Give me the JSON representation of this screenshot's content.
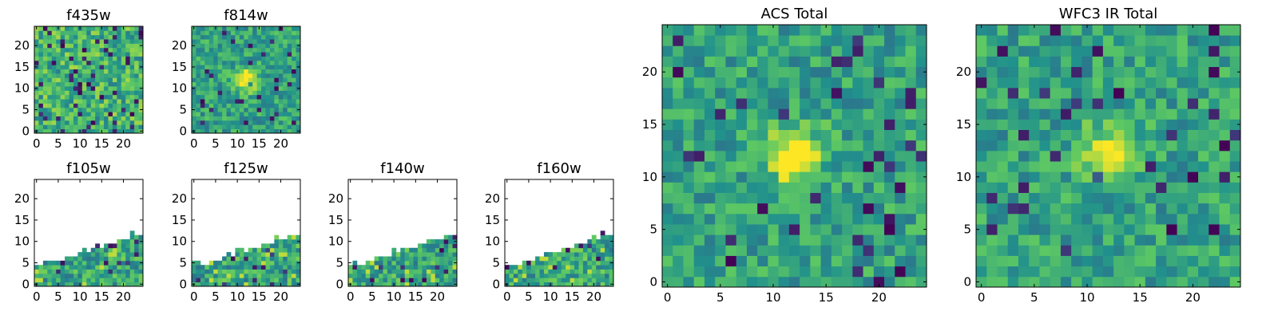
{
  "figure_title": "",
  "colormap": [
    "#440154",
    "#3b528b",
    "#21918c",
    "#5ec962",
    "#fde725"
  ],
  "chart_data": [
    {
      "type": "heatmap",
      "title": "f435w",
      "grid_size": 25,
      "xticks": [
        0,
        5,
        10,
        15,
        20
      ],
      "yticks": [
        0,
        5,
        10,
        15,
        20
      ],
      "xlim": [
        -0.5,
        24.5
      ],
      "ylim": [
        -0.5,
        24.5
      ],
      "pattern": "noise",
      "coverage": "full",
      "source_center": null
    },
    {
      "type": "heatmap",
      "title": "f814w",
      "grid_size": 25,
      "xticks": [
        0,
        5,
        10,
        15,
        20
      ],
      "yticks": [
        0,
        5,
        10,
        15,
        20
      ],
      "xlim": [
        -0.5,
        24.5
      ],
      "ylim": [
        -0.5,
        24.5
      ],
      "pattern": "noise_with_source",
      "coverage": "full",
      "source_center": [
        12,
        12
      ]
    },
    {
      "type": "heatmap",
      "title": "f105w",
      "grid_size": 25,
      "xticks": [
        0,
        5,
        10,
        15,
        20
      ],
      "yticks": [
        0,
        5,
        10,
        15,
        20
      ],
      "xlim": [
        -0.5,
        24.5
      ],
      "ylim": [
        -0.5,
        24.5
      ],
      "pattern": "partial",
      "coverage": "wedge",
      "source_center": null
    },
    {
      "type": "heatmap",
      "title": "f125w",
      "grid_size": 25,
      "xticks": [
        0,
        5,
        10,
        15,
        20
      ],
      "yticks": [
        0,
        5,
        10,
        15,
        20
      ],
      "xlim": [
        -0.5,
        24.5
      ],
      "ylim": [
        -0.5,
        24.5
      ],
      "pattern": "partial",
      "coverage": "wedge",
      "source_center": null
    },
    {
      "type": "heatmap",
      "title": "f140w",
      "grid_size": 25,
      "xticks": [
        0,
        5,
        10,
        15,
        20
      ],
      "yticks": [
        0,
        5,
        10,
        15,
        20
      ],
      "xlim": [
        -0.5,
        24.5
      ],
      "ylim": [
        -0.5,
        24.5
      ],
      "pattern": "partial",
      "coverage": "wedge",
      "source_center": null
    },
    {
      "type": "heatmap",
      "title": "f160w",
      "grid_size": 25,
      "xticks": [
        0,
        5,
        10,
        15,
        20
      ],
      "yticks": [
        0,
        5,
        10,
        15,
        20
      ],
      "xlim": [
        -0.5,
        24.5
      ],
      "ylim": [
        -0.5,
        24.5
      ],
      "pattern": "partial",
      "coverage": "wedge",
      "source_center": null
    },
    {
      "type": "heatmap",
      "title": "ACS Total",
      "grid_size": 25,
      "xticks": [
        0,
        5,
        10,
        15,
        20
      ],
      "yticks": [
        0,
        5,
        10,
        15,
        20
      ],
      "xlim": [
        -0.5,
        24.5
      ],
      "ylim": [
        -0.5,
        24.5
      ],
      "pattern": "noise_with_source",
      "coverage": "full",
      "source_center": [
        12,
        12
      ]
    },
    {
      "type": "heatmap",
      "title": "WFC3 IR Total",
      "grid_size": 25,
      "xticks": [
        0,
        5,
        10,
        15,
        20
      ],
      "yticks": [
        0,
        5,
        10,
        15,
        20
      ],
      "xlim": [
        -0.5,
        24.5
      ],
      "ylim": [
        -0.5,
        24.5
      ],
      "pattern": "noise_with_source",
      "coverage": "full",
      "source_center": [
        12,
        12
      ]
    }
  ]
}
